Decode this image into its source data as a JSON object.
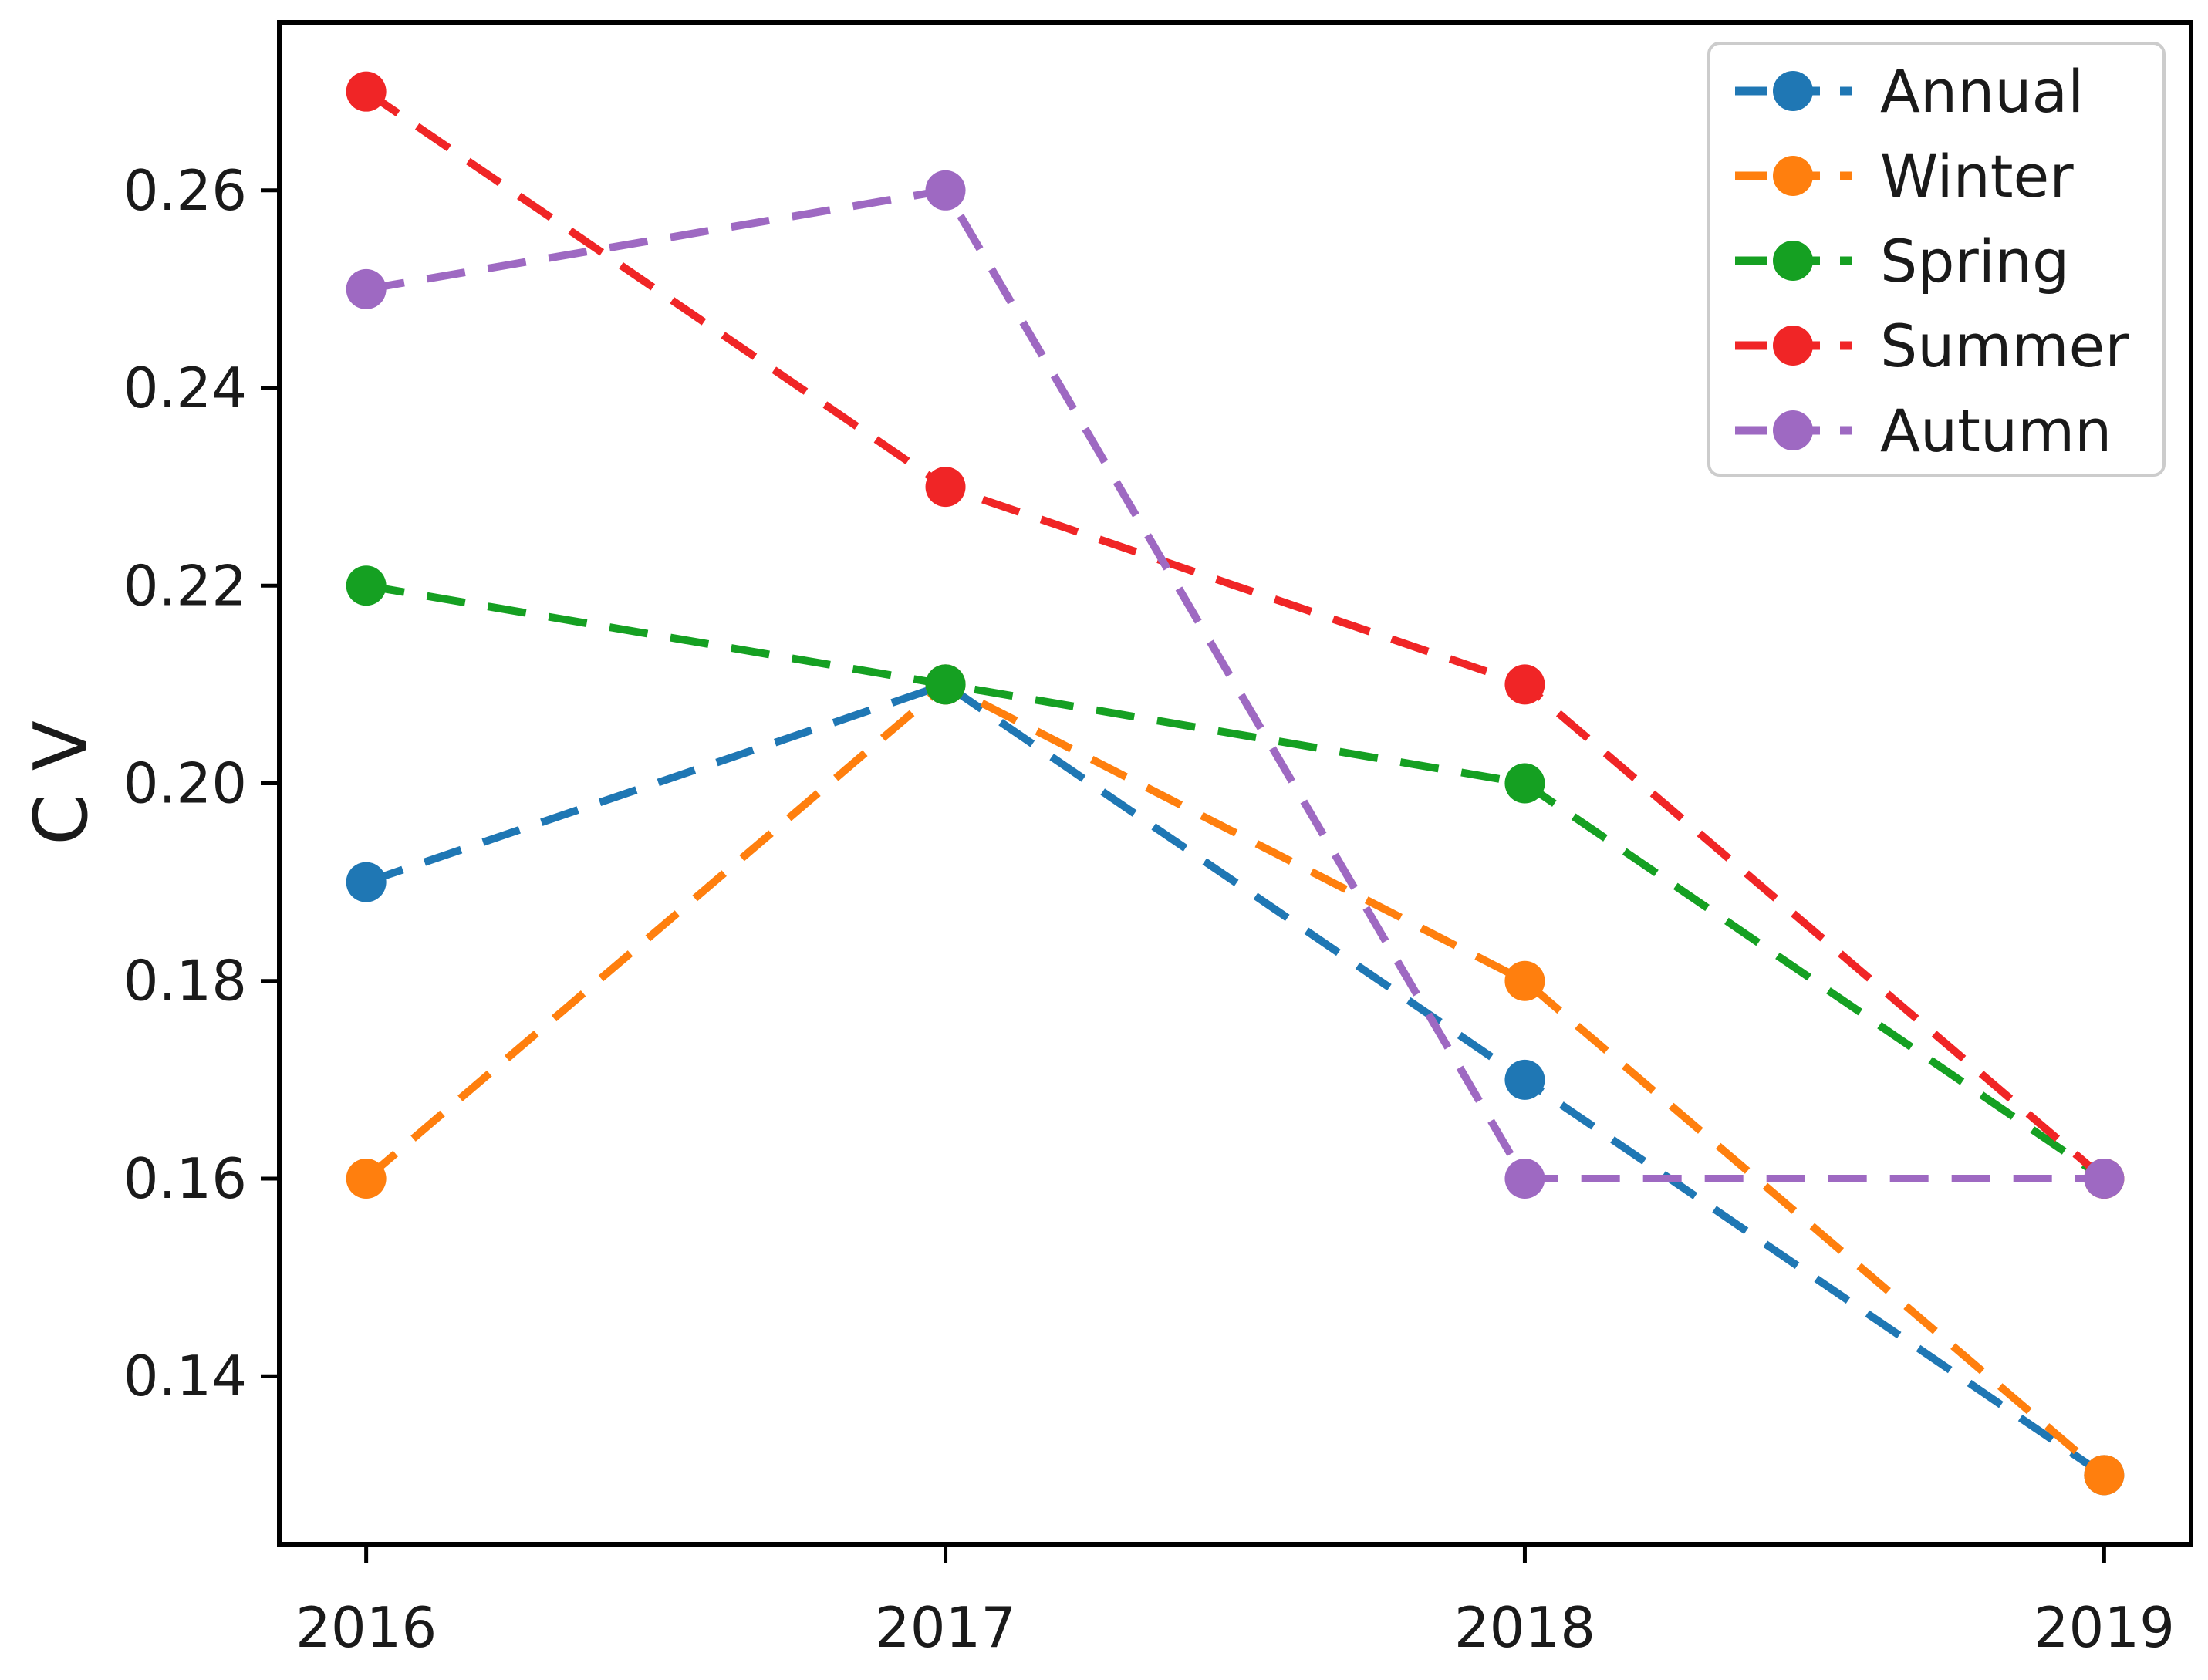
{
  "figure": {
    "background_color": "#ffffff",
    "frame_color": "#000000",
    "text_color": "#1a1a1a",
    "legend_border_color": "#cccccc",
    "legend_background_color": "#ffffff"
  },
  "chart_data": {
    "type": "line",
    "title": "",
    "xlabel": "",
    "ylabel": "C V",
    "categories": [
      "2016",
      "2017",
      "2018",
      "2019"
    ],
    "x_tick_labels": [
      "2016",
      "2017",
      "2018",
      "2019"
    ],
    "y_ticks": [
      0.14,
      0.16,
      0.18,
      0.2,
      0.22,
      0.24,
      0.26
    ],
    "y_tick_labels": [
      "0.14",
      "0.16",
      "0.18",
      "0.20",
      "0.22",
      "0.24",
      "0.26"
    ],
    "ylim": [
      0.123,
      0.277
    ],
    "x_margin_fraction": 0.15,
    "grid": false,
    "line_style": "dashed",
    "marker": "circle",
    "legend_position": "upper right",
    "series": [
      {
        "name": "Annual",
        "color": "#1f77b4",
        "values": [
          0.19,
          0.21,
          0.17,
          0.13
        ]
      },
      {
        "name": "Winter",
        "color": "#ff7f0e",
        "values": [
          0.16,
          0.21,
          0.18,
          0.13
        ]
      },
      {
        "name": "Spring",
        "color": "#15a022",
        "values": [
          0.22,
          0.21,
          0.2,
          0.16
        ]
      },
      {
        "name": "Summer",
        "color": "#f02526",
        "values": [
          0.27,
          0.23,
          0.21,
          0.16
        ]
      },
      {
        "name": "Autumn",
        "color": "#9e69c2",
        "values": [
          0.25,
          0.26,
          0.16,
          0.16
        ]
      }
    ]
  }
}
